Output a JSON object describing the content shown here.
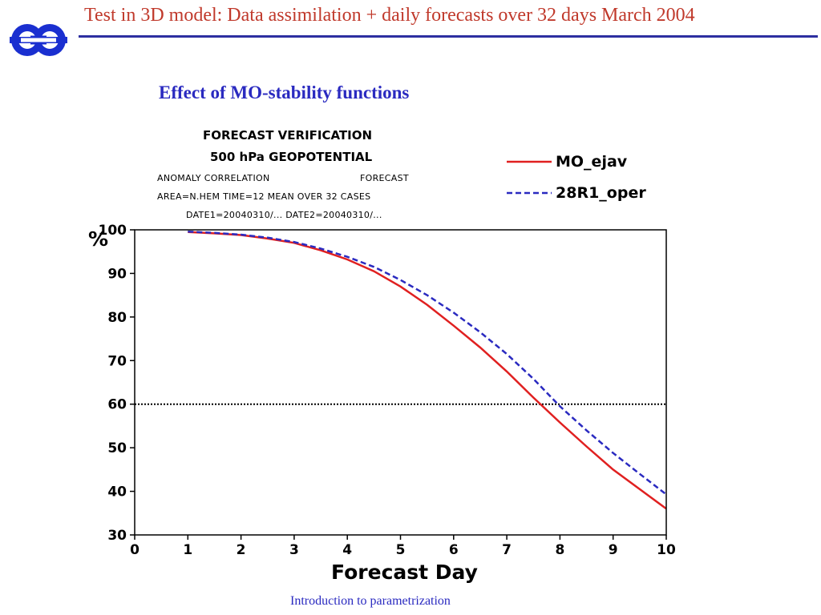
{
  "slide": {
    "title": "Test in 3D model: Data assimilation + daily forecasts over 32 days March 2004",
    "subtitle": "Effect of MO-stability functions",
    "footer": "Introduction to parametrization",
    "logo_icon": "ecmwf-logo-icon",
    "title_color": "#c0392b",
    "accent_color": "#2d2fa0"
  },
  "chart_header": {
    "line1": "FORECAST VERIFICATION",
    "line2": "500 hPa GEOPOTENTIAL",
    "line3a": "ANOMALY CORRELATION",
    "line3b": "FORECAST",
    "line4": "AREA=N.HEM   TIME=12   MEAN OVER  32 CASES",
    "line5": "DATE1=20040310/...  DATE2=20040310/..."
  },
  "chart_data": {
    "type": "line",
    "xlabel": "Forecast Day",
    "ylabel": "%",
    "xlim": [
      0,
      10
    ],
    "ylim": [
      30,
      100
    ],
    "xticks": [
      0,
      1,
      2,
      3,
      4,
      5,
      6,
      7,
      8,
      9,
      10
    ],
    "yticks": [
      30,
      40,
      50,
      60,
      70,
      80,
      90,
      100
    ],
    "reference_line": {
      "y": 60,
      "style": "dotted"
    },
    "legend_position": "top-right",
    "series": [
      {
        "name": "MO_ejav",
        "color": "#e02020",
        "style": "solid",
        "x": [
          1,
          1.5,
          2,
          2.5,
          3,
          3.5,
          4,
          4.5,
          5,
          5.5,
          6,
          6.5,
          7,
          7.5,
          8,
          8.5,
          9,
          9.5,
          10
        ],
        "y": [
          99.5,
          99.2,
          98.8,
          98.0,
          97.0,
          95.3,
          93.2,
          90.5,
          87.0,
          82.8,
          78.0,
          73.0,
          67.5,
          61.5,
          55.8,
          50.3,
          45.0,
          40.5,
          36.0
        ]
      },
      {
        "name": "28R1_oper",
        "color": "#2a2ac0",
        "style": "dashed",
        "x": [
          1,
          1.5,
          2,
          2.5,
          3,
          3.5,
          4,
          4.5,
          5,
          5.5,
          6,
          6.5,
          7,
          7.5,
          8,
          8.5,
          9,
          9.5,
          10
        ],
        "y": [
          99.6,
          99.3,
          98.9,
          98.2,
          97.2,
          95.7,
          93.8,
          91.5,
          88.5,
          85.0,
          81.0,
          76.5,
          71.5,
          65.8,
          59.5,
          54.0,
          48.8,
          44.0,
          39.3
        ]
      }
    ]
  }
}
